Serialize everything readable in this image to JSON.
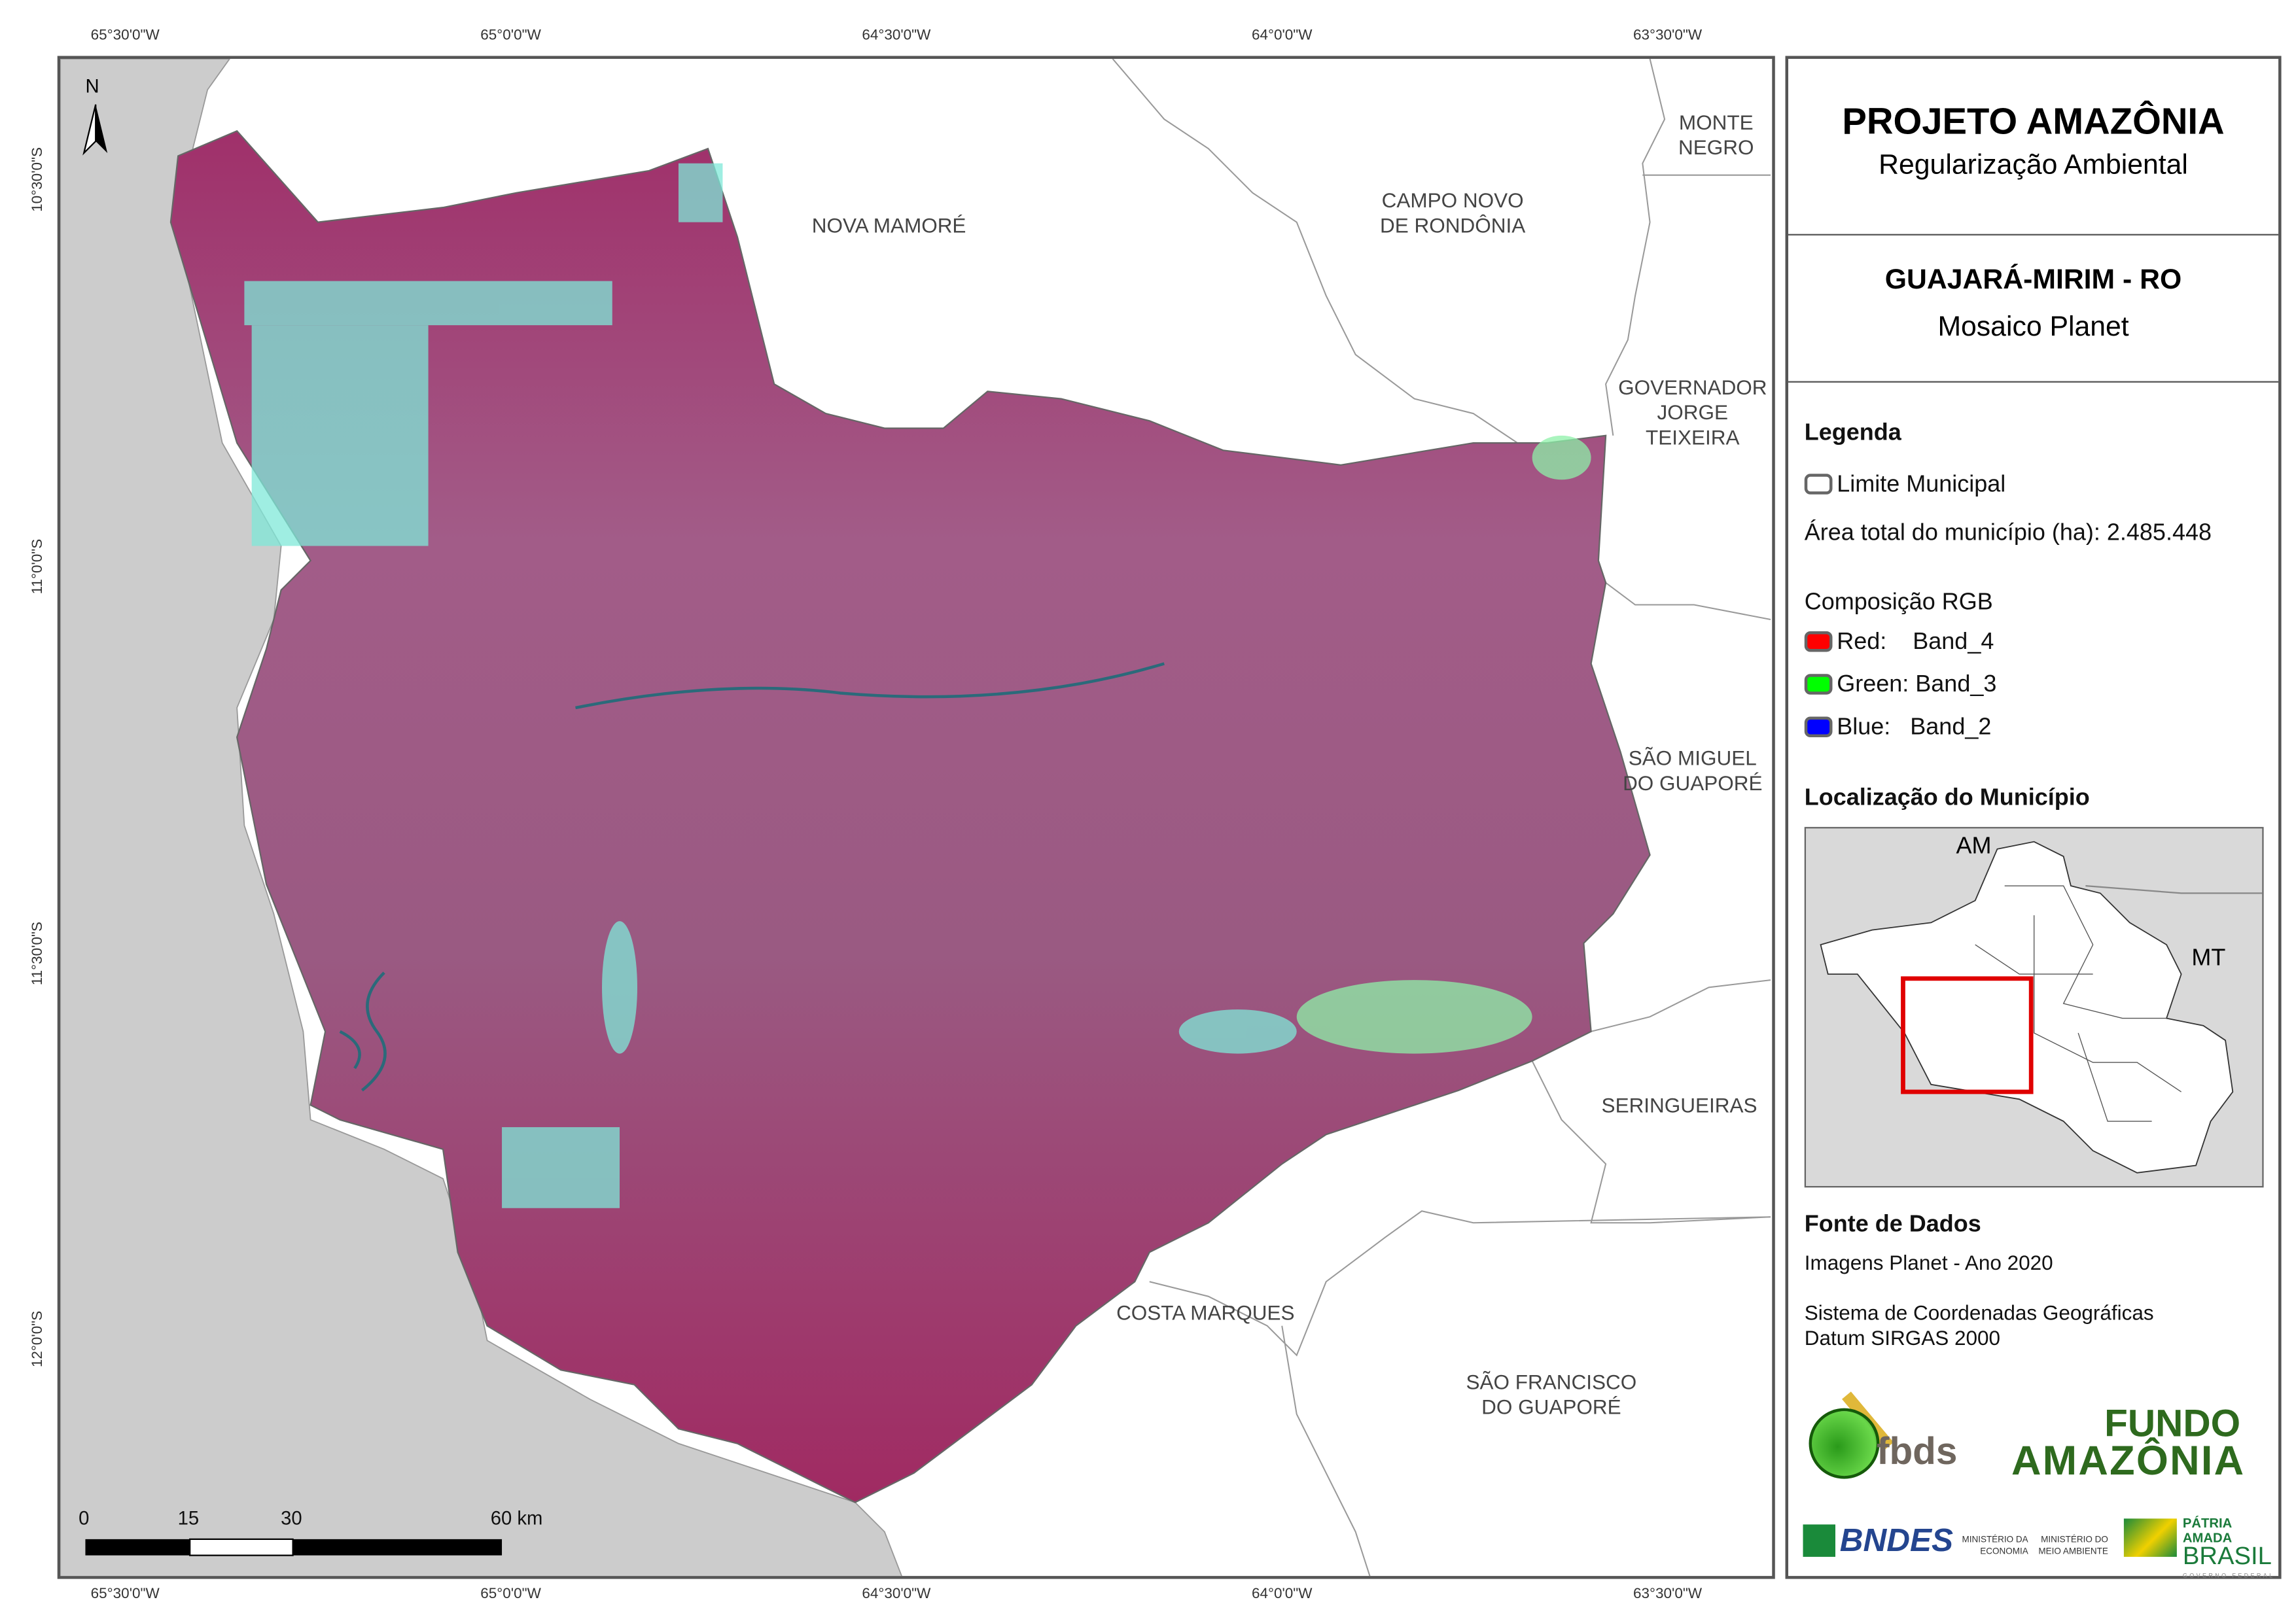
{
  "graticule": {
    "longitudes": [
      "65°30'0\"W",
      "65°0'0\"W",
      "64°30'0\"W",
      "64°0'0\"W",
      "63°30'0\"W"
    ],
    "latitudes": [
      "10°30'0\"S",
      "11°0'0\"S",
      "11°30'0\"S",
      "12°0'0\"S"
    ]
  },
  "map": {
    "north_label": "N",
    "places": [
      {
        "lines": [
          "NOVA MAMORÉ"
        ]
      },
      {
        "lines": [
          "CAMPO NOVO",
          "DE RONDÔNIA"
        ]
      },
      {
        "lines": [
          "MONTE",
          "NEGRO"
        ]
      },
      {
        "lines": [
          "GOVERNADOR",
          "JORGE",
          "TEIXEIRA"
        ]
      },
      {
        "lines": [
          "SÃO MIGUEL",
          "DO GUAPORÉ"
        ]
      },
      {
        "lines": [
          "SERINGUEIRAS"
        ]
      },
      {
        "lines": [
          "COSTA MARQUES"
        ]
      },
      {
        "lines": [
          "SÃO FRANCISCO",
          "DO GUAPORÉ"
        ]
      }
    ],
    "scale_bar": {
      "labels": [
        "0",
        "15",
        "30",
        "60 km"
      ]
    },
    "colors": {
      "municipality": "#9a4a78",
      "neighbor_country": "#cccccc",
      "deforested": "#7fe8d8"
    }
  },
  "panel": {
    "title": "PROJETO AMAZÔNIA",
    "subtitle": "Regularização Ambiental",
    "municipality": "GUAJARÁ-MIRIM - RO",
    "image_source": "Mosaico Planet",
    "legend_title": "Legenda",
    "limit_label": "Limite Municipal",
    "area_text": "Área total do município (ha): 2.485.448",
    "rgb_title": "Composição RGB",
    "bands": [
      {
        "label": "Red:    Band_4",
        "color": "#ff0000"
      },
      {
        "label": "Green: Band_3",
        "color": "#00ff00"
      },
      {
        "label": "Blue:   Band_2",
        "color": "#0000ff"
      }
    ],
    "location_title": "Localização do Município",
    "inset": {
      "labels": [
        "AM",
        "MT"
      ],
      "highlight_color": "#e00000"
    },
    "sources_title": "Fonte de Dados",
    "sources": [
      "Imagens Planet - Ano 2020",
      "Sistema de Coordenadas Geográficas",
      "Datum SIRGAS 2000"
    ],
    "logos": {
      "fbds": "fbds",
      "fundo": [
        "FUNDO",
        "AMAZÔNIA"
      ],
      "bndes": "BNDES",
      "min_economia": [
        "MINISTÉRIO DA",
        "ECONOMIA"
      ],
      "min_ambiente": [
        "MINISTÉRIO DO",
        "MEIO AMBIENTE"
      ],
      "brasil": [
        "PÁTRIA AMADA",
        "BRASIL",
        "GOVERNO FEDERAL"
      ]
    }
  }
}
